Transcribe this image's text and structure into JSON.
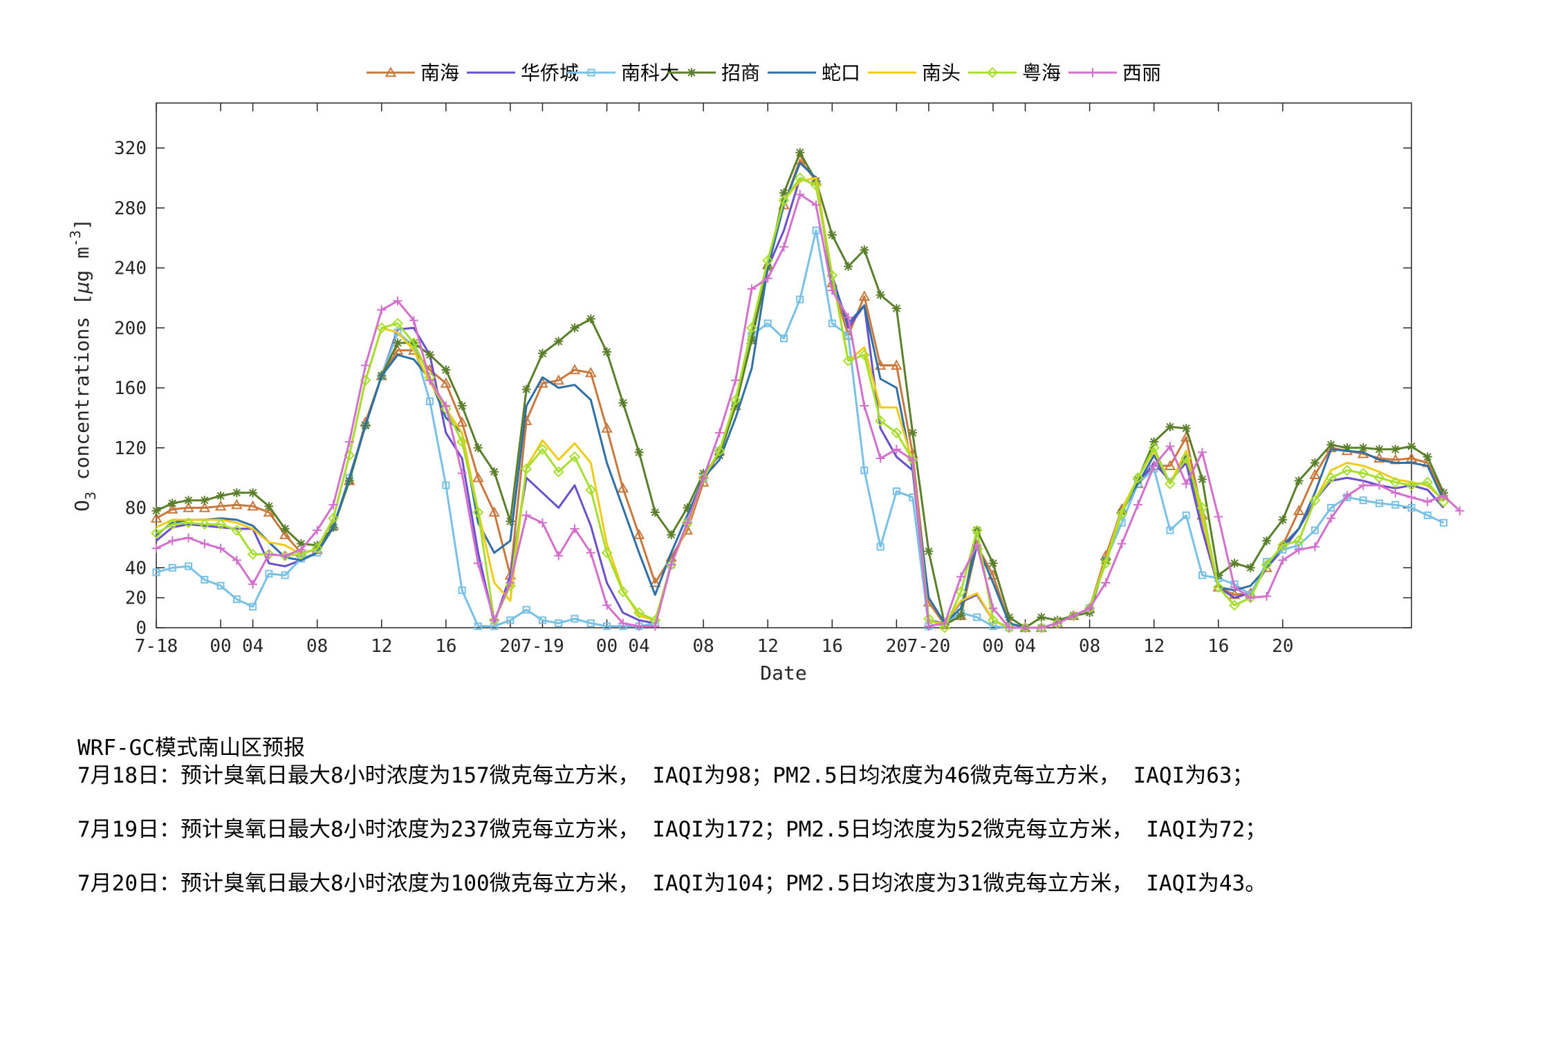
{
  "chart_data": {
    "type": "line",
    "xlabel": "Date",
    "ylabel": "O3 concentrations [µg m-3]",
    "ylabel_parts": {
      "o": "O",
      "sub": "3",
      "mid": " concentrations [",
      "mu": "µ",
      "g": "g m",
      "sup": "-3",
      "end": "]"
    },
    "ylim": [
      0,
      350
    ],
    "yticks": [
      0,
      20,
      40,
      80,
      120,
      160,
      200,
      240,
      280,
      320
    ],
    "xlim": [
      0,
      78
    ],
    "xticks": [
      {
        "x": 0,
        "label": "7-18"
      },
      {
        "x": 4,
        "label": "00"
      },
      {
        "x": 6,
        "label": "04"
      },
      {
        "x": 10,
        "label": "08"
      },
      {
        "x": 14,
        "label": "12"
      },
      {
        "x": 18,
        "label": "16"
      },
      {
        "x": 22,
        "label": "20"
      },
      {
        "x": 24,
        "label": "7-19"
      },
      {
        "x": 28,
        "label": "00"
      },
      {
        "x": 30,
        "label": "04"
      },
      {
        "x": 34,
        "label": "08"
      },
      {
        "x": 38,
        "label": "12"
      },
      {
        "x": 42,
        "label": "16"
      },
      {
        "x": 46,
        "label": "20"
      },
      {
        "x": 48,
        "label": "7-20"
      },
      {
        "x": 52,
        "label": "00"
      },
      {
        "x": 54,
        "label": "04"
      },
      {
        "x": 58,
        "label": "08"
      },
      {
        "x": 62,
        "label": "12"
      },
      {
        "x": 66,
        "label": "16"
      },
      {
        "x": 70,
        "label": "20"
      }
    ],
    "grid": false,
    "legend_position": "top-center",
    "series": [
      {
        "name": "南海",
        "color": "#C8783C",
        "marker": "triangle",
        "values": [
          73,
          79,
          80,
          80,
          81,
          82,
          81,
          77,
          62,
          50,
          52,
          68,
          98,
          137,
          168,
          185,
          185,
          172,
          163,
          137,
          100,
          77,
          35,
          138,
          163,
          165,
          172,
          170,
          133,
          93,
          62,
          30,
          47,
          65,
          97,
          118,
          148,
          192,
          242,
          282,
          312,
          298,
          230,
          195,
          221,
          175,
          175,
          116,
          17,
          2,
          8,
          55,
          35,
          3,
          0,
          0,
          3,
          8,
          13,
          48,
          79,
          96,
          108,
          108,
          127,
          75,
          27,
          22,
          23,
          40,
          55,
          78,
          102,
          120,
          118,
          116,
          113,
          112,
          113,
          110,
          88
        ]
      },
      {
        "name": "华侨城",
        "color": "#6A4FCB",
        "marker": "none",
        "values": [
          58,
          67,
          69,
          68,
          67,
          66,
          66,
          43,
          41,
          45,
          50,
          67,
          100,
          135,
          168,
          199,
          200,
          182,
          130,
          113,
          50,
          3,
          35,
          100,
          90,
          80,
          95,
          68,
          30,
          10,
          5,
          3,
          43,
          70,
          100,
          118,
          148,
          196,
          240,
          265,
          300,
          295,
          235,
          200,
          215,
          133,
          114,
          105,
          5,
          3,
          17,
          22,
          5,
          0,
          0,
          0,
          3,
          8,
          13,
          45,
          77,
          96,
          110,
          98,
          110,
          65,
          27,
          20,
          23,
          40,
          52,
          66,
          85,
          98,
          100,
          98,
          95,
          93,
          95,
          92,
          80
        ]
      },
      {
        "name": "南科大",
        "color": "#78C0E6",
        "marker": "square",
        "values": [
          37,
          40,
          41,
          32,
          28,
          19,
          14,
          36,
          35,
          46,
          50,
          67,
          100,
          135,
          168,
          197,
          188,
          151,
          95,
          25,
          1,
          1,
          5,
          12,
          5,
          3,
          6,
          3,
          1,
          1,
          1,
          3,
          42,
          70,
          100,
          118,
          148,
          195,
          203,
          193,
          219,
          265,
          203,
          195,
          105,
          54,
          91,
          87,
          1,
          3,
          10,
          7,
          1,
          0,
          0,
          0,
          3,
          8,
          13,
          45,
          70,
          96,
          106,
          65,
          75,
          35,
          33,
          29,
          22,
          44,
          52,
          55,
          65,
          80,
          87,
          85,
          83,
          82,
          80,
          75,
          70
        ]
      },
      {
        "name": "招商",
        "color": "#5A7F2A",
        "marker": "star",
        "values": [
          78,
          83,
          85,
          85,
          88,
          90,
          90,
          81,
          66,
          56,
          55,
          67,
          98,
          135,
          168,
          190,
          190,
          182,
          172,
          148,
          120,
          104,
          71,
          159,
          183,
          191,
          200,
          206,
          184,
          150,
          117,
          77,
          62,
          80,
          103,
          115,
          148,
          192,
          240,
          290,
          317,
          298,
          262,
          241,
          252,
          222,
          213,
          130,
          51,
          2,
          8,
          65,
          43,
          7,
          0,
          7,
          5,
          8,
          10,
          45,
          77,
          99,
          124,
          134,
          133,
          99,
          35,
          43,
          40,
          58,
          72,
          98,
          110,
          122,
          120,
          120,
          119,
          119,
          121,
          114,
          90
        ]
      },
      {
        "name": "蛇口",
        "color": "#2E6FA6",
        "marker": "none",
        "values": [
          62,
          70,
          72,
          72,
          73,
          72,
          68,
          57,
          47,
          45,
          50,
          67,
          100,
          135,
          168,
          182,
          179,
          166,
          140,
          130,
          70,
          50,
          58,
          148,
          167,
          160,
          162,
          152,
          110,
          80,
          50,
          22,
          50,
          75,
          100,
          112,
          140,
          173,
          240,
          282,
          310,
          300,
          232,
          203,
          215,
          166,
          160,
          105,
          20,
          3,
          13,
          55,
          30,
          3,
          0,
          0,
          3,
          8,
          13,
          45,
          80,
          96,
          115,
          96,
          115,
          72,
          27,
          25,
          28,
          40,
          55,
          66,
          90,
          119,
          118,
          117,
          112,
          110,
          110,
          108,
          85
        ]
      },
      {
        "name": "南头",
        "color": "#F0CB14",
        "marker": "none",
        "values": [
          67,
          72,
          72,
          72,
          72,
          70,
          66,
          57,
          55,
          49,
          53,
          73,
          115,
          165,
          200,
          197,
          185,
          164,
          146,
          130,
          78,
          30,
          18,
          107,
          125,
          112,
          123,
          110,
          56,
          25,
          8,
          5,
          42,
          68,
          100,
          118,
          152,
          200,
          245,
          285,
          298,
          300,
          235,
          178,
          187,
          147,
          147,
          110,
          4,
          3,
          18,
          23,
          5,
          0,
          0,
          0,
          3,
          8,
          13,
          45,
          79,
          100,
          118,
          96,
          118,
          73,
          27,
          15,
          20,
          42,
          55,
          58,
          85,
          105,
          110,
          108,
          104,
          99,
          97,
          95,
          85
        ]
      },
      {
        "name": "粤海",
        "color": "#A6DE2E",
        "marker": "diamond",
        "values": [
          63,
          69,
          70,
          69,
          69,
          65,
          49,
          49,
          48,
          49,
          53,
          73,
          115,
          165,
          200,
          203,
          190,
          167,
          146,
          124,
          77,
          5,
          28,
          106,
          119,
          104,
          114,
          92,
          50,
          24,
          10,
          5,
          42,
          70,
          100,
          118,
          152,
          200,
          245,
          285,
          300,
          295,
          235,
          178,
          182,
          138,
          130,
          112,
          6,
          0,
          24,
          65,
          5,
          0,
          0,
          0,
          3,
          8,
          13,
          43,
          76,
          100,
          120,
          96,
          113,
          80,
          27,
          15,
          20,
          42,
          55,
          58,
          85,
          100,
          105,
          103,
          100,
          97,
          95,
          97,
          84
        ]
      },
      {
        "name": "西丽",
        "color": "#D36FCC",
        "marker": "plus",
        "values": [
          53,
          58,
          60,
          56,
          53,
          45,
          29,
          49,
          48,
          52,
          65,
          82,
          124,
          175,
          212,
          218,
          205,
          165,
          148,
          103,
          43,
          5,
          30,
          75,
          70,
          48,
          66,
          50,
          15,
          3,
          1,
          1,
          42,
          70,
          100,
          130,
          165,
          226,
          233,
          254,
          289,
          282,
          225,
          207,
          148,
          113,
          119,
          112,
          1,
          3,
          34,
          55,
          13,
          0,
          0,
          0,
          3,
          8,
          13,
          30,
          56,
          82,
          108,
          121,
          96,
          117,
          74,
          27,
          20,
          21,
          45,
          52,
          54,
          73,
          88,
          95,
          95,
          90,
          87,
          84,
          88,
          78
        ]
      }
    ]
  },
  "notes": {
    "title": "WRF-GC模式南山区预报",
    "lines": [
      "7月18日：预计臭氧日最大8小时浓度为157微克每立方米， IAQI为98；PM2.5日均浓度为46微克每立方米， IAQI为63；",
      "7月19日：预计臭氧日最大8小时浓度为237微克每立方米， IAQI为172；PM2.5日均浓度为52微克每立方米， IAQI为72；",
      "7月20日：预计臭氧日最大8小时浓度为100微克每立方米， IAQI为104；PM2.5日均浓度为31微克每立方米， IAQI为43。"
    ]
  }
}
